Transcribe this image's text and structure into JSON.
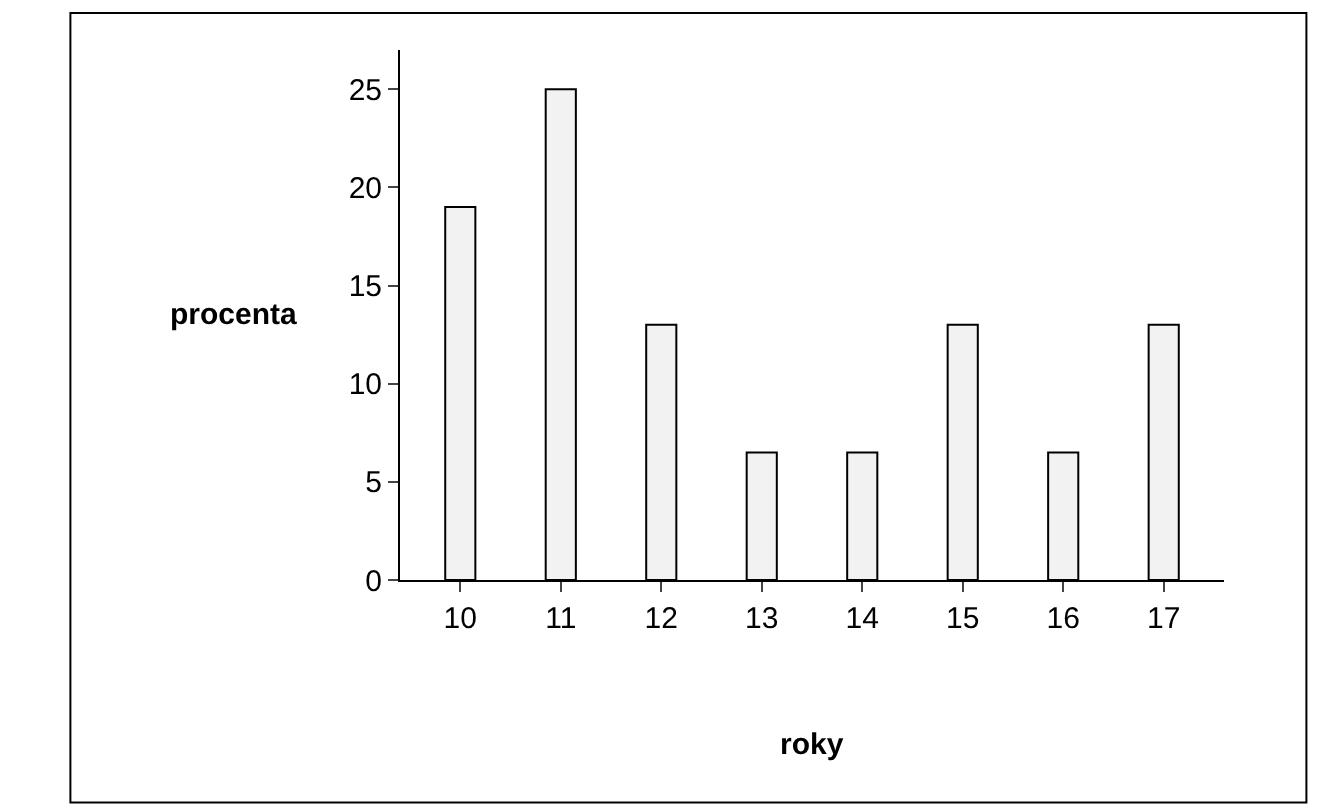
{
  "chart_data": {
    "type": "bar",
    "xlabel": "roky",
    "ylabel": "procenta",
    "categories": [
      "10",
      "11",
      "12",
      "13",
      "14",
      "15",
      "16",
      "17"
    ],
    "values": [
      19,
      25,
      13,
      6.5,
      6.5,
      13,
      6.5,
      13
    ],
    "color": "#f2f2f2",
    "ylim": [
      0,
      27
    ],
    "yticks": [
      0,
      5,
      10,
      15,
      20,
      25
    ]
  }
}
